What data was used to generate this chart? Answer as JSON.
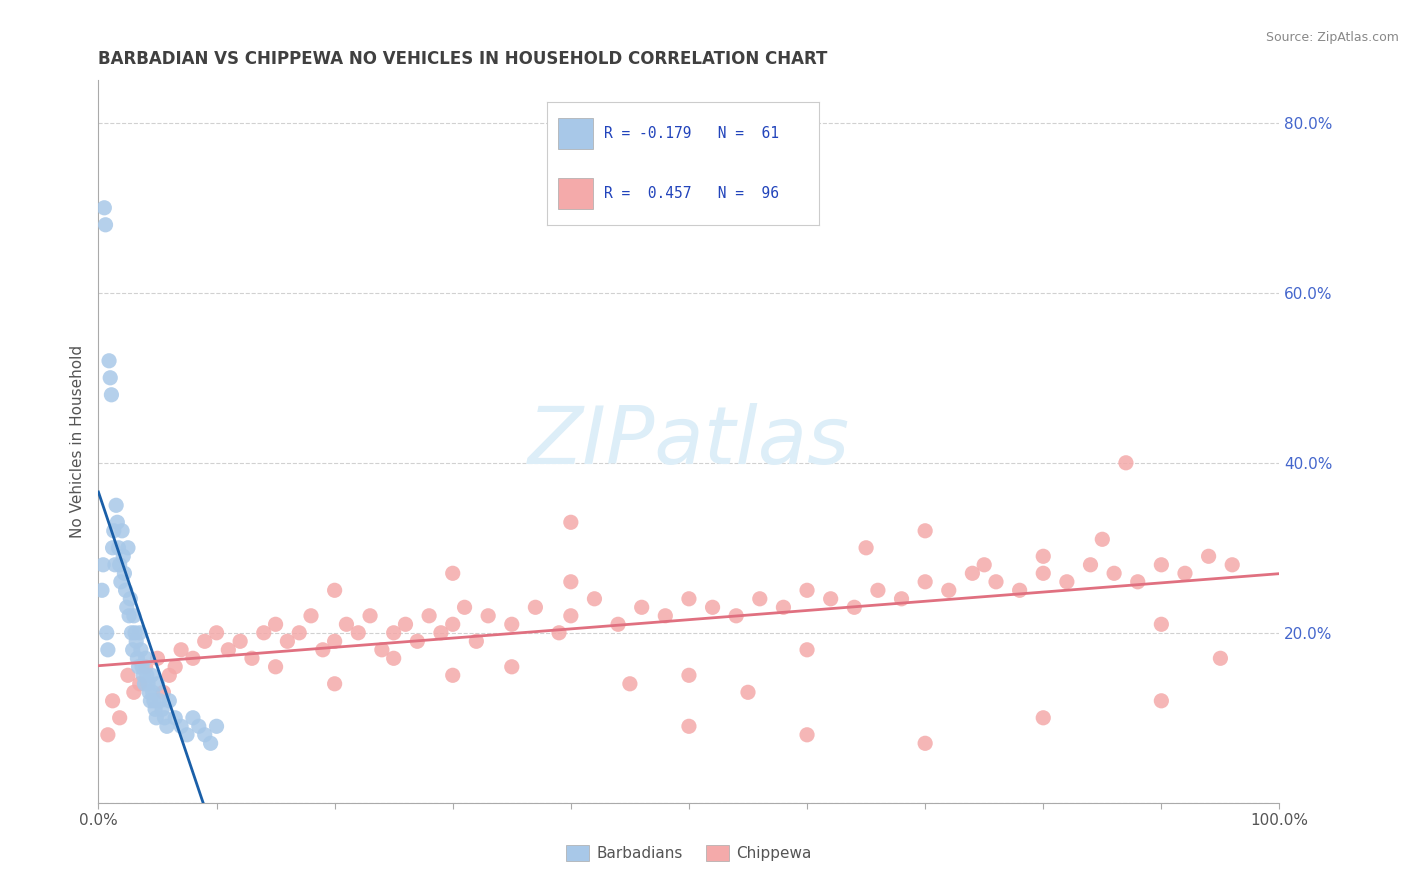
{
  "title": "BARBADIAN VS CHIPPEWA NO VEHICLES IN HOUSEHOLD CORRELATION CHART",
  "source": "Source: ZipAtlas.com",
  "ylabel": "No Vehicles in Household",
  "xlim": [
    0.0,
    1.0
  ],
  "ylim": [
    0.0,
    0.85
  ],
  "barbadian_R": -0.179,
  "barbadian_N": 61,
  "chippewa_R": 0.457,
  "chippewa_N": 96,
  "barbadian_color": "#a8c8e8",
  "chippewa_color": "#f4aaaa",
  "trendline_barbadian_color": "#1a5fa8",
  "trendline_chippewa_color": "#e07080",
  "background_color": "#ffffff",
  "grid_color": "#cccccc",
  "watermark_color": "#ddeef8",
  "legend_R_color": "#2244bb",
  "title_color": "#404040",
  "right_axis_color": "#4466cc",
  "barbadian_x": [
    0.003,
    0.004,
    0.005,
    0.006,
    0.007,
    0.008,
    0.009,
    0.01,
    0.011,
    0.012,
    0.013,
    0.014,
    0.015,
    0.016,
    0.017,
    0.018,
    0.019,
    0.02,
    0.021,
    0.022,
    0.023,
    0.024,
    0.025,
    0.026,
    0.027,
    0.028,
    0.029,
    0.03,
    0.031,
    0.032,
    0.033,
    0.034,
    0.035,
    0.036,
    0.037,
    0.038,
    0.039,
    0.04,
    0.041,
    0.042,
    0.043,
    0.044,
    0.045,
    0.046,
    0.047,
    0.048,
    0.049,
    0.05,
    0.052,
    0.054,
    0.056,
    0.058,
    0.06,
    0.065,
    0.07,
    0.075,
    0.08,
    0.085,
    0.09,
    0.095,
    0.1
  ],
  "barbadian_y": [
    0.25,
    0.28,
    0.7,
    0.68,
    0.2,
    0.18,
    0.52,
    0.5,
    0.48,
    0.3,
    0.32,
    0.28,
    0.35,
    0.33,
    0.3,
    0.28,
    0.26,
    0.32,
    0.29,
    0.27,
    0.25,
    0.23,
    0.3,
    0.22,
    0.24,
    0.2,
    0.18,
    0.22,
    0.2,
    0.19,
    0.17,
    0.16,
    0.2,
    0.18,
    0.16,
    0.15,
    0.14,
    0.17,
    0.15,
    0.14,
    0.13,
    0.12,
    0.15,
    0.13,
    0.12,
    0.11,
    0.1,
    0.14,
    0.12,
    0.11,
    0.1,
    0.09,
    0.12,
    0.1,
    0.09,
    0.08,
    0.1,
    0.09,
    0.08,
    0.07,
    0.09
  ],
  "chippewa_x": [
    0.008,
    0.012,
    0.018,
    0.025,
    0.03,
    0.035,
    0.04,
    0.05,
    0.055,
    0.06,
    0.065,
    0.07,
    0.08,
    0.09,
    0.1,
    0.11,
    0.12,
    0.13,
    0.14,
    0.15,
    0.16,
    0.17,
    0.18,
    0.19,
    0.2,
    0.21,
    0.22,
    0.23,
    0.24,
    0.25,
    0.26,
    0.27,
    0.28,
    0.29,
    0.3,
    0.31,
    0.32,
    0.33,
    0.35,
    0.37,
    0.39,
    0.4,
    0.42,
    0.44,
    0.46,
    0.48,
    0.5,
    0.52,
    0.54,
    0.56,
    0.58,
    0.6,
    0.62,
    0.64,
    0.66,
    0.68,
    0.7,
    0.72,
    0.74,
    0.76,
    0.78,
    0.8,
    0.82,
    0.84,
    0.86,
    0.88,
    0.9,
    0.92,
    0.94,
    0.96,
    0.15,
    0.2,
    0.25,
    0.3,
    0.35,
    0.4,
    0.45,
    0.5,
    0.55,
    0.6,
    0.65,
    0.7,
    0.75,
    0.8,
    0.85,
    0.9,
    0.95,
    0.5,
    0.6,
    0.7,
    0.8,
    0.9,
    0.2,
    0.3,
    0.4,
    0.87
  ],
  "chippewa_y": [
    0.08,
    0.12,
    0.1,
    0.15,
    0.13,
    0.14,
    0.16,
    0.17,
    0.13,
    0.15,
    0.16,
    0.18,
    0.17,
    0.19,
    0.2,
    0.18,
    0.19,
    0.17,
    0.2,
    0.21,
    0.19,
    0.2,
    0.22,
    0.18,
    0.19,
    0.21,
    0.2,
    0.22,
    0.18,
    0.2,
    0.21,
    0.19,
    0.22,
    0.2,
    0.21,
    0.23,
    0.19,
    0.22,
    0.21,
    0.23,
    0.2,
    0.22,
    0.24,
    0.21,
    0.23,
    0.22,
    0.24,
    0.23,
    0.22,
    0.24,
    0.23,
    0.25,
    0.24,
    0.23,
    0.25,
    0.24,
    0.26,
    0.25,
    0.27,
    0.26,
    0.25,
    0.27,
    0.26,
    0.28,
    0.27,
    0.26,
    0.28,
    0.27,
    0.29,
    0.28,
    0.16,
    0.14,
    0.17,
    0.15,
    0.16,
    0.33,
    0.14,
    0.15,
    0.13,
    0.18,
    0.3,
    0.32,
    0.28,
    0.29,
    0.31,
    0.21,
    0.17,
    0.09,
    0.08,
    0.07,
    0.1,
    0.12,
    0.25,
    0.27,
    0.26,
    0.4
  ]
}
